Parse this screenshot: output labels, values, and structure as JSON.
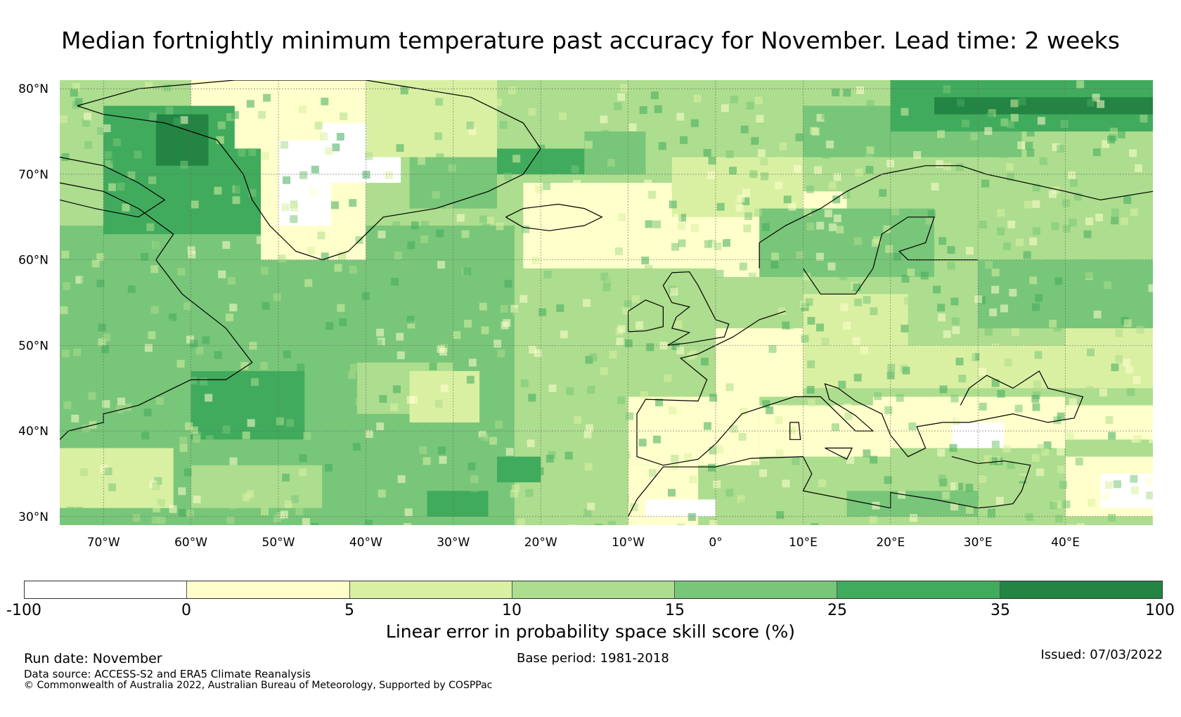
{
  "title": "Median fortnightly minimum temperature past accuracy for November. Lead time: 2 weeks",
  "map": {
    "lat_labels": [
      "80°N",
      "70°N",
      "60°N",
      "50°N",
      "40°N",
      "30°N"
    ],
    "lat_values": [
      80,
      70,
      60,
      50,
      40,
      30
    ],
    "lon_labels": [
      "70°W",
      "60°W",
      "50°W",
      "40°W",
      "30°W",
      "20°W",
      "10°W",
      "0°",
      "10°E",
      "20°E",
      "30°E",
      "40°E"
    ],
    "lon_values": [
      -70,
      -60,
      -50,
      -40,
      -30,
      -20,
      -10,
      0,
      10,
      20,
      30,
      40
    ],
    "lon_range": [
      -75,
      50
    ],
    "lat_range": [
      29,
      81
    ],
    "colors": [
      "#ffffff",
      "#ffffcc",
      "#d9f0a3",
      "#addd8e",
      "#78c679",
      "#41ab5d",
      "#238443"
    ]
  },
  "colorbar": {
    "ticks": [
      "-100",
      "0",
      "5",
      "10",
      "15",
      "25",
      "35",
      "100"
    ],
    "label": "Linear error in probability space skill score (%)"
  },
  "footer": {
    "run_date": "Run date: November",
    "base_period": "Base period: 1981-2018",
    "issued": "Issued: 07/03/2022",
    "data_source": "Data source: ACCESS-S2 and ERA5 Climate Reanalysis",
    "copyright": "© Commonwealth of Australia 2022, Australian Bureau of Meteorology, Supported by COSPPac"
  }
}
